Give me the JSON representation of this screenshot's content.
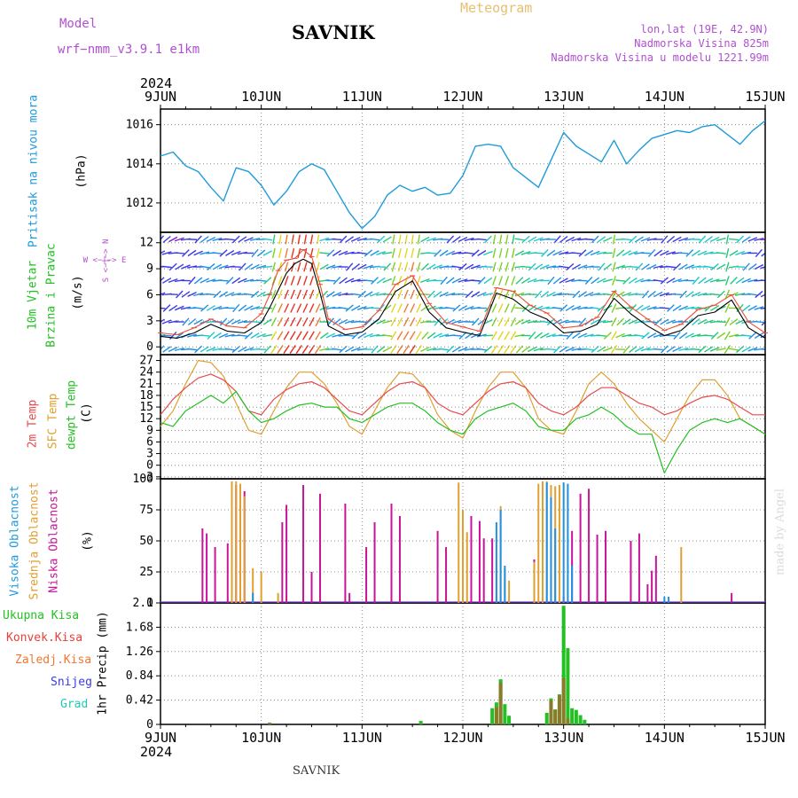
{
  "header": {
    "model_label": "Model",
    "model_name": "wrf−nmm_v3.9.1  e1km",
    "station": "SAVNIK",
    "product": "Meteogram",
    "lonlat": "lon,lat (19E, 42.9N)",
    "elevation": "Nadmorska Visina 825m",
    "model_elevation": "Nadmorska Visina u modelu 1221.99m",
    "footer_station": "SAVNIK",
    "watermark": "made by Angel"
  },
  "time_axis": {
    "year": "2024",
    "labels": [
      "9JUN",
      "10JUN",
      "11JUN",
      "12JUN",
      "13JUN",
      "14JUN",
      "15JUN"
    ]
  },
  "panel_labels": {
    "pressure": {
      "title": "Pritisak na nivou mora",
      "unit": "(hPa)"
    },
    "wind": {
      "lines": [
        "10m Vjetar",
        "Brzina i Pravac"
      ],
      "unit": "(m/s)",
      "compass": [
        "W <−|−> E",
        "S <−|−> N"
      ]
    },
    "temp": {
      "lines": [
        "2m Temp",
        "SFC Temp",
        "dewpt Temp"
      ],
      "unit": "(C)"
    },
    "cloud": {
      "lines": [
        "Visoka Oblacnost",
        "Srednja Oblacnost",
        "Niska Oblacnost"
      ],
      "unit": "(%)"
    },
    "precip": {
      "lines": [
        "Ukupna Kisa",
        "Konvek.Kisa",
        "Zaledj.Kisa",
        "Snijeg",
        "Grad"
      ],
      "unit": "1hr Precip (mm)"
    }
  },
  "colors": {
    "pressure": "#1e9bdc",
    "wind_speed": "#000000",
    "wind_gust": "#e8503a",
    "t2m": "#e84a4a",
    "tsfc": "#e0a030",
    "dewpt": "#22c022",
    "high_cloud": "#1e90e6",
    "mid_cloud": "#e0a030",
    "low_cloud": "#c8149a",
    "total_rain": "#22c022",
    "conv_rain": "#e8403a",
    "frz_rain": "#f07830",
    "snow": "#3a3ae6",
    "hail": "#22c8b4"
  },
  "chart_data": [
    {
      "type": "line",
      "name": "pressure",
      "x_unit": "hours from 9JUN 00",
      "ylim": [
        1010.5,
        1016.8
      ],
      "yticks": [
        1012,
        1014,
        1016
      ],
      "series": [
        {
          "name": "Pritisak na nivou mora",
          "x": [
            0,
            3,
            6,
            9,
            12,
            15,
            18,
            21,
            24,
            27,
            30,
            33,
            36,
            39,
            42,
            45,
            48,
            51,
            54,
            57,
            60,
            63,
            66,
            69,
            72,
            75,
            78,
            81,
            84,
            87,
            90,
            93,
            96,
            99,
            102,
            105,
            108,
            111,
            114,
            117,
            120,
            123,
            126,
            129,
            132,
            135,
            138,
            141,
            144
          ],
          "y": [
            1014.4,
            1014.6,
            1013.9,
            1013.6,
            1012.8,
            1012.1,
            1013.8,
            1013.6,
            1012.9,
            1011.9,
            1012.6,
            1013.6,
            1014.0,
            1013.7,
            1012.6,
            1011.5,
            1010.7,
            1011.3,
            1012.4,
            1012.9,
            1012.6,
            1012.8,
            1012.4,
            1012.5,
            1013.4,
            1014.9,
            1015.0,
            1014.9,
            1013.8,
            1013.3,
            1012.8,
            1014.2,
            1015.6,
            1014.9,
            1014.5,
            1014.1,
            1015.2,
            1014.0,
            1014.7,
            1015.3,
            1015.5,
            1015.7,
            1015.6,
            1015.9,
            1016.0,
            1015.5,
            1015.0,
            1015.7,
            1016.2
          ]
        }
      ]
    },
    {
      "type": "line",
      "name": "wind",
      "ylim": [
        -0.9,
        13.2
      ],
      "yticks": [
        0,
        3,
        6,
        9,
        12
      ],
      "series": [
        {
          "name": "speed",
          "x": [
            0,
            4,
            8,
            12,
            16,
            20,
            24,
            26,
            28,
            30,
            32,
            34,
            36,
            38,
            40,
            44,
            48,
            52,
            56,
            60,
            64,
            68,
            72,
            76,
            80,
            84,
            88,
            92,
            96,
            100,
            104,
            108,
            112,
            116,
            120,
            124,
            128,
            132,
            136,
            140,
            144
          ],
          "y": [
            1.2,
            1.0,
            1.6,
            2.6,
            1.8,
            1.6,
            2.8,
            4.5,
            6.5,
            8.5,
            9.6,
            10.1,
            9.6,
            6.2,
            2.4,
            1.4,
            1.7,
            3.2,
            6.4,
            7.6,
            4.0,
            2.2,
            1.7,
            1.3,
            6.2,
            5.5,
            4.0,
            3.2,
            1.6,
            1.8,
            2.6,
            5.6,
            3.8,
            2.4,
            1.3,
            1.9,
            3.6,
            4.0,
            5.4,
            2.2,
            1.0
          ]
        },
        {
          "name": "gust",
          "x": [
            0,
            4,
            8,
            12,
            16,
            20,
            24,
            26,
            28,
            30,
            32,
            34,
            36,
            38,
            40,
            44,
            48,
            52,
            56,
            60,
            64,
            68,
            72,
            76,
            80,
            84,
            88,
            92,
            96,
            100,
            104,
            108,
            112,
            116,
            120,
            124,
            128,
            132,
            136,
            140,
            144
          ],
          "y": [
            1.6,
            1.4,
            2.2,
            3.2,
            2.4,
            2.2,
            3.8,
            6.0,
            8.8,
            10.0,
            10.2,
            11.2,
            10.4,
            7.2,
            3.2,
            2.0,
            2.3,
            4.2,
            7.2,
            8.2,
            5.0,
            2.8,
            2.3,
            1.8,
            6.8,
            6.4,
            4.8,
            3.9,
            2.2,
            2.4,
            3.4,
            6.4,
            4.6,
            3.2,
            1.9,
            2.6,
            4.3,
            4.8,
            6.0,
            2.9,
            1.6
          ]
        }
      ]
    },
    {
      "type": "line",
      "name": "temperature",
      "ylim": [
        -3.5,
        28.5
      ],
      "yticks": [
        -3,
        0,
        3,
        6,
        9,
        12,
        15,
        18,
        21,
        24,
        27
      ],
      "series": [
        {
          "name": "2m Temp",
          "x": [
            0,
            3,
            6,
            9,
            12,
            15,
            18,
            21,
            24,
            27,
            30,
            33,
            36,
            39,
            42,
            45,
            48,
            51,
            54,
            57,
            60,
            63,
            66,
            69,
            72,
            75,
            78,
            81,
            84,
            87,
            90,
            93,
            96,
            99,
            102,
            105,
            108,
            111,
            114,
            117,
            120,
            123,
            126,
            129,
            132,
            135,
            138,
            141,
            144
          ],
          "y": [
            13,
            17,
            20,
            22.5,
            23.5,
            22,
            19,
            14,
            13,
            17,
            19.5,
            21,
            21.5,
            20,
            17,
            14,
            13,
            16,
            19,
            21,
            21.5,
            20,
            16,
            14,
            13,
            16,
            19,
            21,
            21.5,
            20,
            16,
            14,
            13,
            15,
            18,
            20,
            20,
            18,
            16,
            15,
            13,
            14,
            16,
            17.5,
            18,
            17,
            15,
            13,
            13
          ]
        },
        {
          "name": "SFC Temp",
          "x": [
            0,
            3,
            6,
            9,
            12,
            15,
            18,
            21,
            24,
            27,
            30,
            33,
            36,
            39,
            42,
            45,
            48,
            51,
            54,
            57,
            60,
            63,
            66,
            69,
            72,
            75,
            78,
            81,
            84,
            87,
            90,
            93,
            96,
            99,
            102,
            105,
            108,
            111,
            114,
            117,
            120,
            123,
            126,
            129,
            132,
            135,
            138,
            141,
            144
          ],
          "y": [
            10,
            14,
            21,
            27,
            26.5,
            23,
            16,
            9,
            8,
            14,
            20,
            24,
            24,
            21,
            16,
            10,
            8,
            14,
            20,
            24,
            23.5,
            20,
            13,
            9,
            7,
            14,
            20,
            24,
            24,
            20,
            12,
            9,
            8,
            14,
            21,
            24,
            21,
            16,
            12,
            9,
            6,
            12,
            18,
            22,
            22,
            18,
            12,
            10,
            8
          ]
        },
        {
          "name": "dewpt Temp",
          "x": [
            0,
            3,
            6,
            9,
            12,
            15,
            18,
            21,
            24,
            27,
            30,
            33,
            36,
            39,
            42,
            45,
            48,
            51,
            54,
            57,
            60,
            63,
            66,
            69,
            72,
            75,
            78,
            81,
            84,
            87,
            90,
            93,
            96,
            99,
            102,
            105,
            108,
            111,
            114,
            117,
            120,
            123,
            126,
            129,
            132,
            135,
            138,
            141,
            144
          ],
          "y": [
            11,
            10,
            14,
            16,
            18,
            16,
            19,
            14,
            11,
            12,
            14,
            15.5,
            16,
            15,
            15,
            12,
            11,
            13,
            15,
            16,
            16,
            14,
            11,
            9,
            8,
            12,
            14,
            15,
            16,
            14,
            10,
            9,
            9,
            12,
            13,
            15,
            13,
            10,
            8,
            8,
            -2,
            4,
            9,
            11,
            12,
            11,
            12,
            10,
            8
          ]
        }
      ]
    },
    {
      "type": "bar",
      "name": "cloud",
      "ylim": [
        0,
        100
      ],
      "yticks": [
        0,
        25,
        50,
        75,
        100
      ],
      "series": [
        {
          "name": "Niska Oblacnost",
          "x": [
            10,
            11,
            13,
            16,
            18,
            20,
            29,
            30,
            34,
            36,
            38,
            44,
            45,
            49,
            51,
            55,
            57,
            66,
            68,
            72,
            74,
            76,
            77,
            79,
            89,
            96,
            98,
            100,
            102,
            104,
            106,
            112,
            114,
            116,
            117,
            118,
            136
          ],
          "y": [
            60,
            56,
            45,
            48,
            95,
            90,
            65,
            79,
            95,
            25,
            88,
            80,
            8,
            45,
            65,
            80,
            70,
            58,
            45,
            38,
            70,
            66,
            52,
            52,
            35,
            5,
            58,
            88,
            92,
            55,
            58,
            50,
            56,
            15,
            26,
            38,
            8
          ]
        },
        {
          "name": "Srednja Oblacnost",
          "x": [
            17,
            18,
            19,
            20,
            22,
            24,
            28,
            71,
            72,
            73,
            80,
            81,
            82,
            83,
            89,
            90,
            91,
            92,
            93,
            94,
            95,
            124
          ],
          "y": [
            98,
            98,
            96,
            86,
            28,
            25,
            8,
            97,
            75,
            57,
            34,
            78,
            28,
            18,
            33,
            96,
            98,
            98,
            95,
            94,
            95,
            45
          ]
        },
        {
          "name": "Visoka Oblacnost",
          "x": [
            22,
            80,
            81,
            82,
            92,
            93,
            94,
            96,
            97,
            98,
            120,
            121
          ],
          "y": [
            8,
            65,
            75,
            30,
            97,
            85,
            60,
            97,
            96,
            30,
            5,
            5
          ]
        }
      ]
    },
    {
      "type": "bar",
      "name": "precipitation",
      "ylim": [
        0,
        2.1
      ],
      "yticks": [
        0,
        0.42,
        0.84,
        1.26,
        1.68,
        2.1
      ],
      "series": [
        {
          "name": "Ukupna Kisa",
          "x": [
            26,
            62,
            79,
            80,
            81,
            82,
            83,
            92,
            93,
            94,
            95,
            96,
            97,
            98,
            99,
            100,
            101
          ],
          "y": [
            0.03,
            0.06,
            0.28,
            0.38,
            0.78,
            0.35,
            0.15,
            0.2,
            0.45,
            0.26,
            0.52,
            2.05,
            1.32,
            0.28,
            0.25,
            0.16,
            0.08
          ]
        },
        {
          "name": "Konvek.Kisa",
          "x": [
            26,
            80,
            81,
            93,
            94,
            95,
            96,
            97
          ],
          "y": [
            0.03,
            0.3,
            0.72,
            0.42,
            0.25,
            0.5,
            0.8,
            0.1
          ]
        },
        {
          "name": "Zaledj.Kisa",
          "x": [],
          "y": []
        },
        {
          "name": "Snijeg",
          "x": [],
          "y": []
        },
        {
          "name": "Grad",
          "x": [],
          "y": []
        }
      ]
    }
  ]
}
